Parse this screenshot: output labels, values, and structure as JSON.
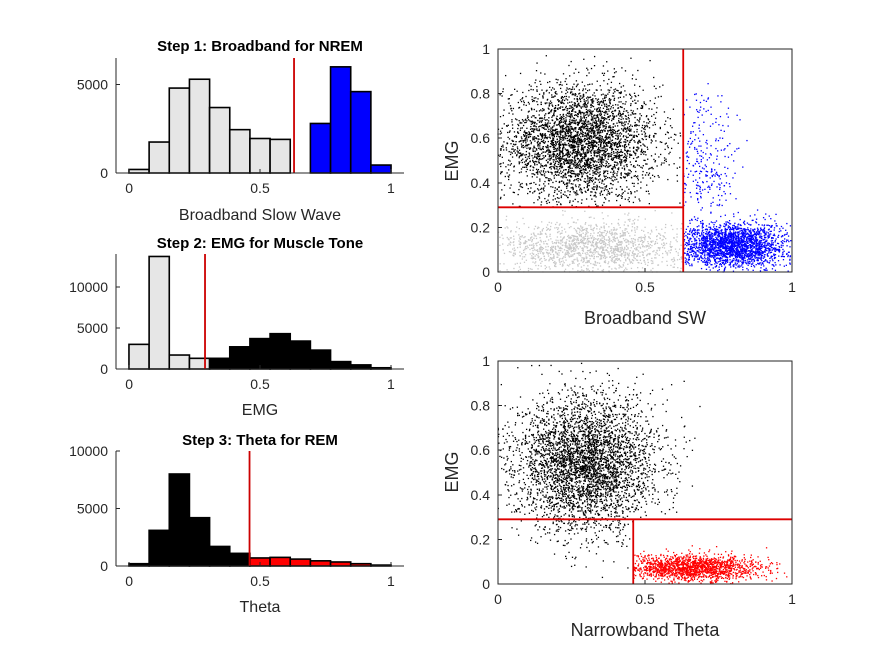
{
  "chart_data": [
    {
      "type": "bar",
      "title": "Step 1: Broadband for NREM",
      "xlabel": "Broadband Slow Wave",
      "ylabel": "",
      "bin_width": 0.077,
      "bin_centers": [
        0.038,
        0.115,
        0.192,
        0.269,
        0.346,
        0.423,
        0.5,
        0.577,
        0.654,
        0.731,
        0.808,
        0.885,
        0.962
      ],
      "values": [
        200,
        1750,
        4800,
        5300,
        3700,
        2450,
        1950,
        1900,
        0,
        2800,
        6000,
        4600,
        450
      ],
      "bar_colors": [
        "#e6e6e6",
        "#e6e6e6",
        "#e6e6e6",
        "#e6e6e6",
        "#e6e6e6",
        "#e6e6e6",
        "#e6e6e6",
        "#e6e6e6",
        "#e6e6e6",
        "#0000ff",
        "#0000ff",
        "#0000ff",
        "#0000ff"
      ],
      "threshold": 0.63,
      "threshold_color": "#cc0000",
      "xlim": [
        -0.05,
        1.05
      ],
      "ylim": [
        0,
        6500
      ],
      "xticks": [
        0,
        0.5,
        1
      ],
      "xticklabels": [
        "0",
        "0.5",
        "1"
      ],
      "yticks": [
        0,
        5000
      ],
      "yticklabels": [
        "0",
        "5000"
      ]
    },
    {
      "type": "bar",
      "title": "Step 2: EMG for Muscle Tone",
      "xlabel": "EMG",
      "ylabel": "",
      "bin_width": 0.077,
      "bin_centers": [
        0.038,
        0.115,
        0.192,
        0.269,
        0.346,
        0.423,
        0.5,
        0.577,
        0.654,
        0.731,
        0.808,
        0.885,
        0.962
      ],
      "values": [
        3000,
        13700,
        1700,
        1300,
        1300,
        2700,
        3700,
        4300,
        3400,
        2300,
        900,
        500,
        150
      ],
      "bar_colors": [
        "#e6e6e6",
        "#e6e6e6",
        "#e6e6e6",
        "#e6e6e6",
        "#000000",
        "#000000",
        "#000000",
        "#000000",
        "#000000",
        "#000000",
        "#000000",
        "#000000",
        "#000000"
      ],
      "threshold": 0.29,
      "threshold_color": "#cc0000",
      "xlim": [
        -0.05,
        1.05
      ],
      "ylim": [
        0,
        14000
      ],
      "xticks": [
        0,
        0.5,
        1
      ],
      "xticklabels": [
        "0",
        "0.5",
        "1"
      ],
      "yticks": [
        0,
        5000,
        10000
      ],
      "yticklabels": [
        "0",
        "5000",
        "10000"
      ]
    },
    {
      "type": "bar",
      "title": "Step 3: Theta for REM",
      "xlabel": "Theta",
      "ylabel": "",
      "bin_width": 0.077,
      "bin_centers": [
        0.038,
        0.115,
        0.192,
        0.269,
        0.346,
        0.423,
        0.5,
        0.577,
        0.654,
        0.731,
        0.808,
        0.885,
        0.962
      ],
      "values": [
        200,
        3100,
        8000,
        4200,
        1700,
        1100,
        700,
        750,
        600,
        450,
        350,
        200,
        80
      ],
      "bar_colors": [
        "#000000",
        "#000000",
        "#000000",
        "#000000",
        "#000000",
        "#000000",
        "#ff0000",
        "#ff0000",
        "#ff0000",
        "#ff0000",
        "#ff0000",
        "#ff0000",
        "#ff0000"
      ],
      "threshold": 0.46,
      "threshold_color": "#cc0000",
      "xlim": [
        -0.05,
        1.05
      ],
      "ylim": [
        0,
        10000
      ],
      "xticks": [
        0,
        0.5,
        1
      ],
      "xticklabels": [
        "0",
        "0.5",
        "1"
      ],
      "yticks": [
        0,
        5000,
        10000
      ],
      "yticklabels": [
        "0",
        "5000",
        "10000"
      ]
    },
    {
      "type": "scatter",
      "title": "",
      "xlabel": "Broadband SW",
      "ylabel": "EMG",
      "xlim": [
        0,
        1
      ],
      "ylim": [
        0,
        1
      ],
      "xticks": [
        0,
        0.5,
        1
      ],
      "xticklabels": [
        "0",
        "0.5",
        "1"
      ],
      "yticks": [
        0,
        0.2,
        0.4,
        0.6,
        0.8,
        1
      ],
      "yticklabels": [
        "0",
        "0.2",
        "0.4",
        "0.6",
        "0.8",
        "1"
      ],
      "box": true,
      "series": [
        {
          "color": "#000000",
          "clusters": [
            {
              "cx": 0.28,
              "cy": 0.58,
              "sx": 0.13,
              "sy": 0.13,
              "n": 3500,
              "xmin": 0.0,
              "xmax": 0.63,
              "ymin": 0.29,
              "ymax": 1.0
            }
          ]
        },
        {
          "color": "#c8c8c8",
          "clusters": [
            {
              "cx": 0.32,
              "cy": 0.11,
              "sx": 0.16,
              "sy": 0.06,
              "n": 1400,
              "xmin": 0.0,
              "xmax": 0.63,
              "ymin": 0.0,
              "ymax": 0.29
            }
          ]
        },
        {
          "color": "#0000ff",
          "clusters": [
            {
              "cx": 0.8,
              "cy": 0.12,
              "sx": 0.09,
              "sy": 0.05,
              "n": 2200,
              "xmin": 0.63,
              "xmax": 1.0,
              "ymin": 0.0,
              "ymax": 0.29
            },
            {
              "cx": 0.7,
              "cy": 0.45,
              "sx": 0.06,
              "sy": 0.18,
              "n": 250,
              "xmin": 0.63,
              "xmax": 0.85,
              "ymin": 0.29,
              "ymax": 0.9
            }
          ]
        }
      ],
      "lines": [
        {
          "x": [
            0.63,
            0.63
          ],
          "y": [
            0,
            1
          ],
          "color": "#dd0000"
        },
        {
          "x": [
            0,
            0.63
          ],
          "y": [
            0.29,
            0.29
          ],
          "color": "#dd0000"
        }
      ]
    },
    {
      "type": "scatter",
      "title": "",
      "xlabel": "Narrowband Theta",
      "ylabel": "EMG",
      "xlim": [
        0,
        1
      ],
      "ylim": [
        0,
        1
      ],
      "xticks": [
        0,
        0.5,
        1
      ],
      "xticklabels": [
        "0",
        "0.5",
        "1"
      ],
      "yticks": [
        0,
        0.2,
        0.4,
        0.6,
        0.8,
        1
      ],
      "yticklabels": [
        "0",
        "0.2",
        "0.4",
        "0.6",
        "0.8",
        "1"
      ],
      "box": true,
      "series": [
        {
          "color": "#000000",
          "clusters": [
            {
              "cx": 0.3,
              "cy": 0.54,
              "sx": 0.12,
              "sy": 0.15,
              "n": 3800,
              "xmin": 0.0,
              "xmax": 1.0,
              "ymin": 0.0,
              "ymax": 1.0,
              "skip_region": [
                0.46,
                1.0,
                0.0,
                0.29
              ]
            }
          ]
        },
        {
          "color": "#ff0000",
          "clusters": [
            {
              "cx": 0.66,
              "cy": 0.07,
              "sx": 0.12,
              "sy": 0.03,
              "n": 1600,
              "xmin": 0.46,
              "xmax": 1.0,
              "ymin": 0.0,
              "ymax": 0.29
            }
          ]
        }
      ],
      "lines": [
        {
          "x": [
            0.46,
            0.46
          ],
          "y": [
            0,
            0.29
          ],
          "color": "#dd0000"
        },
        {
          "x": [
            0,
            1
          ],
          "y": [
            0.29,
            0.29
          ],
          "color": "#dd0000"
        }
      ]
    }
  ]
}
